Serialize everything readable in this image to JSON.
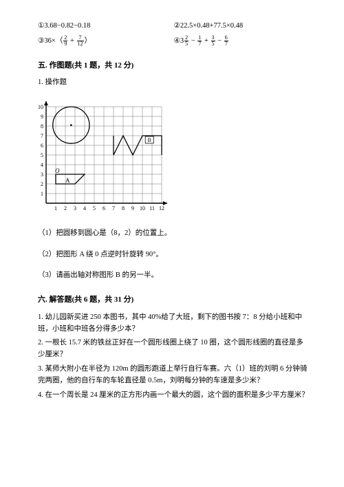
{
  "exprs": {
    "e1": "①3.68−0.82−0.18",
    "e2": "②22.5×0.48+77.5×0.48",
    "e3_prefix": "③36×（",
    "e3_plus": " + ",
    "e3_suffix": "）",
    "e4_prefix": "④3",
    "e4_m1": " − ",
    "e4_p": " + ",
    "e4_m2": " − ",
    "f1_n": "2",
    "f1_d": "9",
    "f2_n": "7",
    "f2_d": "12",
    "f3_n": "2",
    "f3_d": "5",
    "f4_n": "1",
    "f4_d": "7",
    "f5_n": "3",
    "f5_d": "5",
    "f6_n": "6",
    "f6_d": "7"
  },
  "sec5": {
    "title": "五. 作图题(共 1 题，共 12 分)",
    "q1": "1. 操作题",
    "s1": "（1）把圆移到圆心是（8，2）的位置上。",
    "s2": "（2）把图形 A 绕 0 点逆时针旋转 90°。",
    "s3": "（3）请画出轴对称图形 B 的另一半。"
  },
  "sec6": {
    "title": "六. 解答题(共 6 题，共 31 分)",
    "q1": "1. 幼儿园新买进 250 本图书，其中 40%给了大班，剩下的图书按 7：8 分给小班和中班，小班和中班各分得多少本？",
    "q2": "2. 一根长 15.7 米的铁丝正好在一个圆形线圈上绕了 10 圈，这个圆形线圈的直径是多少厘米？",
    "q3": "3. 某师大附小在半径为 120m 的圆形跑道上举行自行车赛。六（1）班的刘明 6 分钟骑完两圈，他的自行车的车轮直径是 0.5m，刘明每分钟的车速是多少米？",
    "q4": "4. 在一个周长是 24 厘米的正方形内画一个最大的圆，这个圆的面积是多少平方厘米？"
  },
  "grid": {
    "cell": 14,
    "cols": 12,
    "rows": 10,
    "ox": 12,
    "oy": 158,
    "color_grid": "#707070",
    "color_fg": "#000000",
    "circle_cx_cells": 2.6,
    "circle_cy_cells": 8.1,
    "circle_r_cells": 1.9,
    "O_label": "O",
    "A_label": "A",
    "B_label": "B",
    "O_cell": [
      1,
      3
    ],
    "A_poly_cells": [
      [
        1,
        3
      ],
      [
        4,
        3
      ],
      [
        3,
        2
      ],
      [
        1,
        2
      ]
    ],
    "B_poly_cells": [
      [
        7,
        7
      ],
      [
        7,
        5
      ],
      [
        8,
        7
      ],
      [
        9,
        5
      ],
      [
        10,
        7
      ],
      [
        12,
        7
      ],
      [
        12,
        5
      ]
    ],
    "x_ticks": [
      "1",
      "2",
      "3",
      "4",
      "5",
      "6",
      "7",
      "8",
      "9",
      "10",
      "11",
      "12"
    ],
    "y_ticks": [
      "1",
      "2",
      "3",
      "4",
      "5",
      "6",
      "7",
      "8",
      "9",
      "10"
    ]
  }
}
